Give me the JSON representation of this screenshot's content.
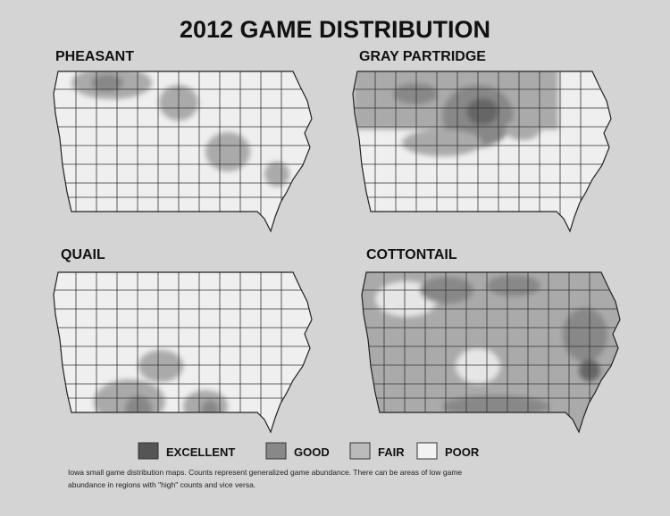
{
  "title": "2012 GAME DISTRIBUTION",
  "maps": [
    {
      "label": "PHEASANT"
    },
    {
      "label": "GRAY PARTRIDGE"
    },
    {
      "label": "QUAIL"
    },
    {
      "label": "COTTONTAIL"
    }
  ],
  "legend": [
    "EXCELLENT",
    "GOOD",
    "FAIR",
    "POOR"
  ],
  "caption": [
    "Iowa small game distribution maps. Counts represent generalized game abundance.  There can be areas of low game",
    "abundance in regions with \"high\" counts and vice versa."
  ]
}
